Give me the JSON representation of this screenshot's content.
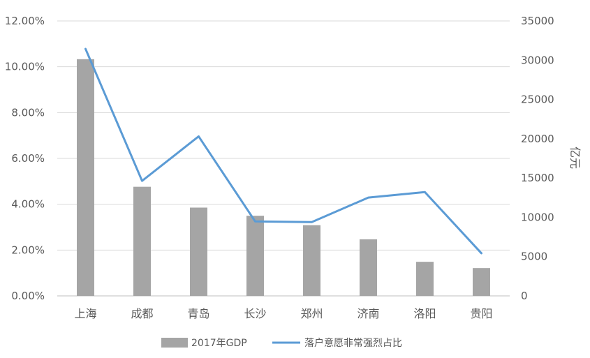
{
  "chart_data": {
    "type": "bar+line",
    "categories": [
      "上海",
      "成都",
      "青岛",
      "长沙",
      "郑州",
      "济南",
      "洛阳",
      "贵阳"
    ],
    "series": [
      {
        "name": "2017年GDP",
        "type": "bar",
        "axis": "right",
        "color": "#a5a5a5",
        "values": [
          30130,
          13890,
          11240,
          10200,
          9000,
          7200,
          4340,
          3540
        ]
      },
      {
        "name": "落户意愿非常强烈占比",
        "type": "line",
        "axis": "left",
        "color": "#5b9bd5",
        "values": [
          0.1078,
          0.0502,
          0.0696,
          0.0325,
          0.0322,
          0.0429,
          0.0453,
          0.0186
        ]
      }
    ],
    "y_left": {
      "range": [
        0,
        0.12
      ],
      "ticks": [
        0,
        0.02,
        0.04,
        0.06,
        0.08,
        0.1,
        0.12
      ],
      "tick_labels": [
        "0.00%",
        "2.00%",
        "4.00%",
        "6.00%",
        "8.00%",
        "10.00%",
        "12.00%"
      ]
    },
    "y_right": {
      "label": "亿元",
      "range": [
        0,
        35000
      ],
      "ticks": [
        0,
        5000,
        10000,
        15000,
        20000,
        25000,
        30000,
        35000
      ],
      "tick_labels": [
        "0",
        "5000",
        "10000",
        "15000",
        "20000",
        "25000",
        "30000",
        "35000"
      ]
    },
    "grid": true,
    "gridline_color": "#d9d9d9",
    "legend_position": "bottom"
  }
}
